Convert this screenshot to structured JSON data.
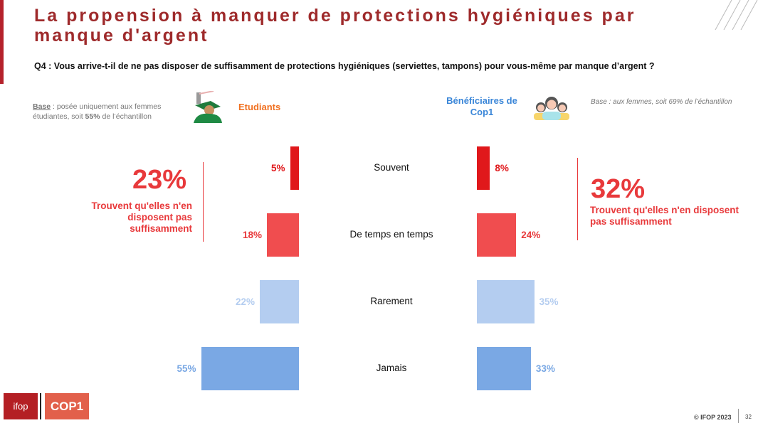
{
  "title": "La propension à manquer de protections hygiéniques par manque d'argent",
  "question": "Q4 : Vous arrive-t-il de ne pas disposer de suffisamment de protections hygiéniques (serviettes, tampons) pour vous-même par manque d’argent ?",
  "left": {
    "base_label": "Base",
    "base_text": " : posée uniquement aux femmes étudiantes, soit ",
    "base_pct": "55%",
    "base_end": " de l’échantillon",
    "group": "Etudiants",
    "total": "23%",
    "total_text": "Trouvent qu'elles n'en disposent pas suffisamment"
  },
  "right": {
    "base_text": "Base : aux femmes, soit 69% de l’échantillon",
    "group": "Bénéficiaires de Cop1",
    "total": "32%",
    "total_text": "Trouvent qu'elles n'en disposent pas suffisamment"
  },
  "chart_data": {
    "type": "bar",
    "orientation": "horizontal-butterfly",
    "categories": [
      "Souvent",
      "De temps en temps",
      "Rarement",
      "Jamais"
    ],
    "series": [
      {
        "name": "Etudiants",
        "values": [
          5,
          18,
          22,
          55
        ]
      },
      {
        "name": "Bénéficiaires de Cop1",
        "values": [
          8,
          24,
          35,
          33
        ]
      }
    ],
    "labels": {
      "Etudiants": [
        "5%",
        "18%",
        "22%",
        "55%"
      ],
      "Bénéficiaires de Cop1": [
        "8%",
        "24%",
        "35%",
        "33%"
      ]
    },
    "colors": [
      "#e0181b",
      "#f04d4f",
      "#b4cdf0",
      "#7aa8e4"
    ],
    "label_colors": [
      "#e0181b",
      "#e8393b",
      "#b4cdf0",
      "#7aa8e4"
    ]
  },
  "footer": {
    "ifop": "ifop",
    "coop": "COP1",
    "copyright": "© IFOP 2023",
    "page": "32"
  }
}
